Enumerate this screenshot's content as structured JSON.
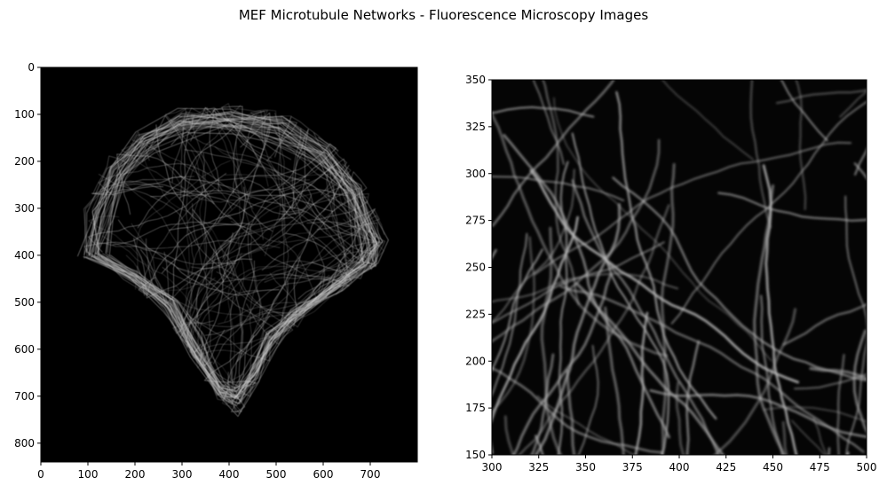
{
  "figure": {
    "title": "MEF Microtubule Networks - Fluorescence Microscopy Images"
  },
  "panels": [
    {
      "id": "full-cell",
      "xticks": [
        "0",
        "100",
        "200",
        "300",
        "400",
        "500",
        "600",
        "700"
      ],
      "yticks": [
        "0",
        "100",
        "200",
        "300",
        "400",
        "500",
        "600",
        "700",
        "800"
      ],
      "xlim": [
        0,
        800
      ],
      "ylim": [
        840,
        0
      ]
    },
    {
      "id": "zoom",
      "xticks": [
        "300",
        "325",
        "350",
        "375",
        "400",
        "425",
        "450",
        "475",
        "500"
      ],
      "yticks": [
        "150",
        "175",
        "200",
        "225",
        "250",
        "275",
        "300",
        "325",
        "350"
      ],
      "xlim": [
        300,
        500
      ],
      "ylim": [
        150,
        350
      ]
    }
  ],
  "colors": {
    "background": "#000000",
    "filament": "#d9d9d9"
  }
}
